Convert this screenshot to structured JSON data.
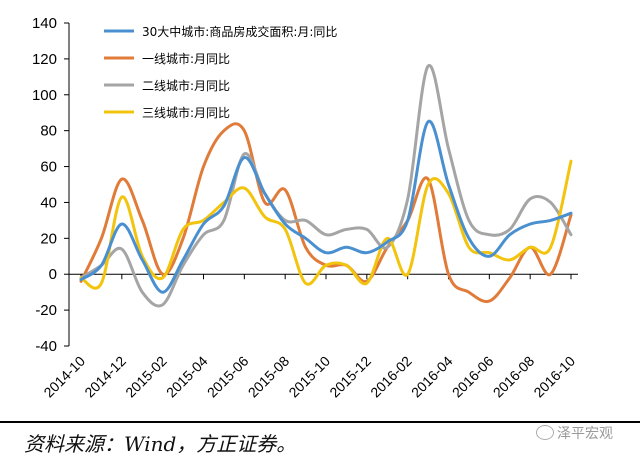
{
  "chart_data": {
    "type": "line",
    "title": "",
    "xlabel": "",
    "ylabel": "",
    "ylim": [
      -40,
      140
    ],
    "yticks": [
      "140",
      "120",
      "100",
      "80",
      "60",
      "40",
      "20",
      "0",
      "-20",
      "-40"
    ],
    "categories": [
      "2014-10",
      "2014-11",
      "2014-12",
      "2015-01",
      "2015-02",
      "2015-03",
      "2015-04",
      "2015-05",
      "2015-06",
      "2015-07",
      "2015-08",
      "2015-09",
      "2015-10",
      "2015-11",
      "2015-12",
      "2016-01",
      "2016-02",
      "2016-03",
      "2016-04",
      "2016-05",
      "2016-06",
      "2016-07",
      "2016-08",
      "2016-09",
      "2016-10"
    ],
    "xtick_labels": [
      "2014-10",
      "2014-12",
      "2015-02",
      "2015-04",
      "2015-06",
      "2015-08",
      "2015-10",
      "2015-12",
      "2016-02",
      "2016-04",
      "2016-06",
      "2016-08",
      "2016-10"
    ],
    "legend_position": "top-left",
    "grid": false,
    "series": [
      {
        "name": "30大中城市:商品房成交面积:月:同比",
        "color": "#4A90D0",
        "values": [
          -3,
          5,
          28,
          8,
          -10,
          8,
          28,
          38,
          65,
          45,
          28,
          20,
          12,
          15,
          12,
          18,
          30,
          85,
          50,
          20,
          10,
          22,
          28,
          30,
          34
        ]
      },
      {
        "name": "一线城市:月同比",
        "color": "#E07B39",
        "values": [
          -4,
          20,
          53,
          30,
          0,
          20,
          60,
          80,
          80,
          40,
          47,
          15,
          5,
          5,
          -4,
          15,
          30,
          53,
          0,
          -10,
          -15,
          -2,
          15,
          0,
          33
        ]
      },
      {
        "name": "二线城市:月同比",
        "color": "#A5A5A5",
        "values": [
          -2,
          5,
          14,
          -10,
          -17,
          5,
          22,
          30,
          67,
          45,
          30,
          30,
          22,
          25,
          25,
          15,
          42,
          116,
          70,
          30,
          22,
          25,
          42,
          40,
          22
        ]
      },
      {
        "name": "三线城市:月同比",
        "color": "#F2C40E",
        "values": [
          -2,
          -5,
          43,
          10,
          -2,
          25,
          30,
          40,
          48,
          32,
          25,
          -5,
          5,
          5,
          -5,
          20,
          0,
          50,
          45,
          15,
          12,
          8,
          15,
          15,
          63
        ]
      }
    ]
  },
  "source": {
    "text": "资料来源：Wind，方正证券。",
    "watermark": "泽平宏观"
  }
}
